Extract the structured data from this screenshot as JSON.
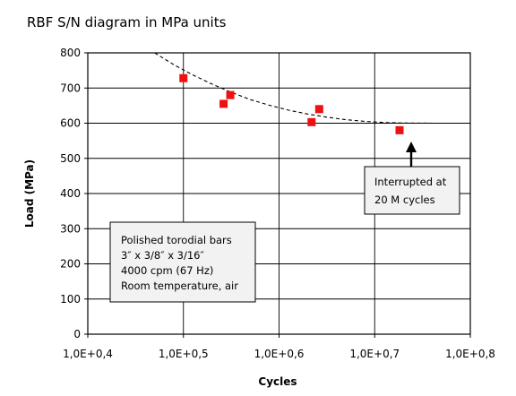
{
  "chart_data": {
    "type": "scatter",
    "title": "RBF S/N diagram in MPa units",
    "xlabel": "Cycles",
    "ylabel": "Load (MPa)",
    "x_scale": "log",
    "xlim": [
      0.4,
      0.8
    ],
    "ylim": [
      0,
      800
    ],
    "x_ticks": [
      0.4,
      0.5,
      0.6,
      0.7,
      0.8
    ],
    "x_tick_labels": [
      "1,0E+0,4",
      "1,0E+0,5",
      "1,0E+0,6",
      "1,0E+0,7",
      "1,0E+0,8"
    ],
    "y_ticks": [
      0,
      100,
      200,
      300,
      400,
      500,
      600,
      700,
      800
    ],
    "grid": true,
    "legend": "none",
    "series": [
      {
        "color": "#ee1111",
        "marker": "square",
        "points": [
          {
            "x": 0.5,
            "y": 728
          },
          {
            "x": 0.542,
            "y": 655
          },
          {
            "x": 0.549,
            "y": 680
          },
          {
            "x": 0.634,
            "y": 603
          },
          {
            "x": 0.642,
            "y": 640
          },
          {
            "x": 0.726,
            "y": 580
          }
        ]
      }
    ],
    "trendline": {
      "style": "dashed",
      "color": "#000000",
      "points": [
        {
          "x": 0.47,
          "y": 800
        },
        {
          "x": 0.49,
          "y": 766
        },
        {
          "x": 0.51,
          "y": 737
        },
        {
          "x": 0.53,
          "y": 711
        },
        {
          "x": 0.55,
          "y": 688
        },
        {
          "x": 0.57,
          "y": 667
        },
        {
          "x": 0.59,
          "y": 651
        },
        {
          "x": 0.61,
          "y": 637
        },
        {
          "x": 0.63,
          "y": 626
        },
        {
          "x": 0.65,
          "y": 617
        },
        {
          "x": 0.67,
          "y": 610
        },
        {
          "x": 0.69,
          "y": 605
        },
        {
          "x": 0.71,
          "y": 602
        },
        {
          "x": 0.73,
          "y": 600.5
        },
        {
          "x": 0.76,
          "y": 600
        },
        {
          "x": 0.8,
          "y": 600
        }
      ]
    },
    "annotations": [
      {
        "id": "specimen",
        "lines": [
          "Polished torodial bars",
          "3″ x  3/8″ x 3/16″",
          "4000 cpm (67 Hz)",
          "Room temperature, air"
        ]
      },
      {
        "id": "interrupted",
        "lines": [
          "Interrupted at",
          "20 M cycles"
        ],
        "arrow_to": {
          "x": 0.726,
          "y": 580
        }
      }
    ]
  }
}
